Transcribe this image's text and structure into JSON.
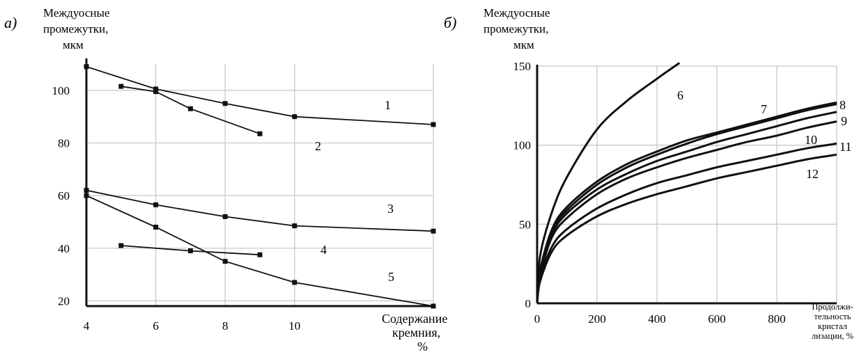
{
  "chart_data": [
    {
      "panel": "а)",
      "type": "line",
      "title_lines": [
        "Междуосные",
        "промежутки,",
        "мкм"
      ],
      "xlabel_lines": [
        "Содержание",
        "кремния,",
        "%"
      ],
      "xlim": [
        4,
        14
      ],
      "ylim": [
        18,
        110
      ],
      "xticks": [
        4,
        6,
        8,
        10
      ],
      "yticks": [
        20,
        40,
        60,
        80,
        100
      ],
      "grid": true,
      "series": [
        {
          "name": "1",
          "x": [
            4,
            6,
            8,
            10,
            14
          ],
          "y": [
            109,
            100.5,
            95,
            90,
            87
          ]
        },
        {
          "name": "2",
          "x": [
            5,
            6,
            7,
            9
          ],
          "y": [
            101.5,
            99.5,
            93,
            83.5
          ]
        },
        {
          "name": "3",
          "x": [
            4,
            6,
            8,
            10,
            14
          ],
          "y": [
            62,
            56.5,
            52,
            48.5,
            46.5
          ]
        },
        {
          "name": "4",
          "x": [
            5,
            7,
            9
          ],
          "y": [
            41,
            39,
            37.5
          ]
        },
        {
          "name": "5",
          "x": [
            4,
            6,
            8,
            10,
            14
          ],
          "y": [
            60,
            48,
            35,
            27,
            18
          ]
        }
      ]
    },
    {
      "panel": "б)",
      "type": "line",
      "title_lines": [
        "Междуосные",
        "промежутки,",
        "мкм"
      ],
      "xlabel_lines": [
        "Продолжи-",
        "тельность",
        "кристал",
        "лизации, %"
      ],
      "xlim": [
        0,
        1000
      ],
      "ylim": [
        0,
        150
      ],
      "xticks": [
        0,
        200,
        400,
        600,
        800
      ],
      "yticks": [
        0,
        50,
        100,
        150
      ],
      "grid": true,
      "series": [
        {
          "name": "6",
          "x": [
            0,
            10,
            50,
            100,
            200,
            300,
            400,
            475
          ],
          "y": [
            0,
            30,
            58,
            80,
            110,
            128,
            142,
            152
          ]
        },
        {
          "name": "7",
          "x": [
            0,
            10,
            50,
            100,
            200,
            300,
            400,
            500,
            600,
            700,
            800,
            900,
            1000
          ],
          "y": [
            0,
            21,
            47,
            61,
            77,
            88,
            96,
            103,
            108,
            113,
            118,
            123,
            127
          ]
        },
        {
          "name": "8",
          "x": [
            0,
            10,
            50,
            100,
            200,
            300,
            400,
            500,
            600,
            700,
            800,
            900,
            1000
          ],
          "y": [
            0,
            20,
            46,
            59,
            75,
            86,
            94,
            101,
            107,
            112,
            117,
            122,
            126
          ]
        },
        {
          "name": "9",
          "x": [
            0,
            10,
            50,
            100,
            200,
            300,
            400,
            500,
            600,
            700,
            800,
            900,
            1000
          ],
          "y": [
            0,
            19,
            44,
            57,
            72,
            82,
            90,
            96,
            102,
            107,
            112,
            117,
            121
          ]
        },
        {
          "name": "10",
          "x": [
            0,
            10,
            50,
            100,
            200,
            300,
            400,
            500,
            600,
            700,
            800,
            900,
            1000
          ],
          "y": [
            0,
            18,
            42,
            54,
            69,
            79,
            86,
            92,
            97,
            102,
            106,
            111,
            115
          ]
        },
        {
          "name": "11",
          "x": [
            0,
            10,
            50,
            100,
            200,
            300,
            400,
            500,
            600,
            700,
            800,
            900,
            1000
          ],
          "y": [
            0,
            16,
            36,
            47,
            60,
            69,
            76,
            81,
            86,
            90,
            94,
            98,
            101
          ]
        },
        {
          "name": "12",
          "x": [
            0,
            10,
            50,
            100,
            200,
            300,
            400,
            500,
            600,
            700,
            800,
            900,
            1000
          ],
          "y": [
            0,
            14,
            33,
            43,
            55,
            63,
            69,
            74,
            79,
            83,
            87,
            91,
            94
          ]
        }
      ]
    }
  ]
}
